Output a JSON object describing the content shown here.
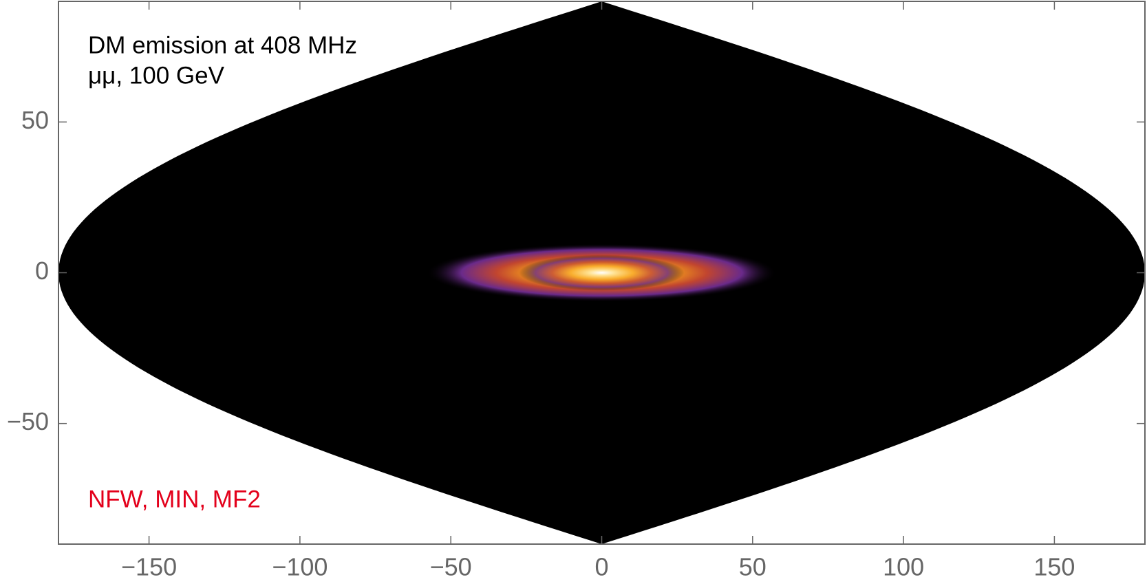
{
  "chart_data": {
    "type": "skymap",
    "projection": "sinusoidal",
    "annotations": [
      {
        "text": "DM emission at 408 MHz",
        "color": "#000000"
      },
      {
        "text": "μμ, 100 GeV",
        "color": "#000000"
      },
      {
        "text": "NFW, MIN, MF2",
        "color": "#e3001b"
      }
    ],
    "xlim": [
      -180,
      180
    ],
    "ylim": [
      -90,
      90
    ],
    "xticks": [
      {
        "value": -150,
        "label": "−150"
      },
      {
        "value": -100,
        "label": "−100"
      },
      {
        "value": -50,
        "label": "−50"
      },
      0,
      50,
      100,
      150
    ],
    "yticks": [
      {
        "value": -50,
        "label": "−50"
      },
      0,
      50
    ],
    "background_color": "#000000"
  }
}
